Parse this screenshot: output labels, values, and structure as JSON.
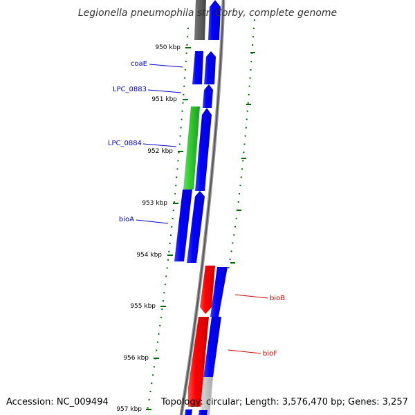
{
  "title": "Legionella pneumophila str. Corby, complete genome",
  "footer": {
    "accession": "Accession: NC_009494",
    "summary": "Topology: circular; Length: 3,576,470 bp; Genes: 3,257"
  },
  "colors": {
    "forward_gene": "#0000ff",
    "reverse_gene": "#ff0000",
    "rna_gene": "#33cc33",
    "ruler_tick": "#006600",
    "backbone": "#888888"
  },
  "ruler": [
    {
      "label": "950 kbp"
    },
    {
      "label": "951 kbp"
    },
    {
      "label": "952 kbp"
    },
    {
      "label": "953 kbp"
    },
    {
      "label": "954 kbp"
    },
    {
      "label": "955 kbp"
    },
    {
      "label": "956 kbp"
    },
    {
      "label": "957 kbp"
    }
  ],
  "genes": [
    {
      "name": "coaE",
      "strand": "forward"
    },
    {
      "name": "LPC_0883",
      "strand": "forward"
    },
    {
      "name": "LPC_0884",
      "strand": "forward"
    },
    {
      "name": "bioA",
      "strand": "forward"
    },
    {
      "name": "bioB",
      "strand": "reverse"
    },
    {
      "name": "bioF",
      "strand": "reverse"
    }
  ]
}
